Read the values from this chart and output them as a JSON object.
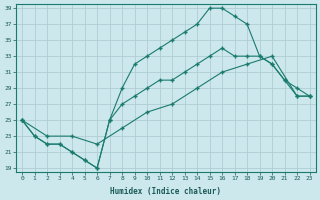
{
  "xlabel": "Humidex (Indice chaleur)",
  "bg_color": "#cce8ec",
  "grid_color": "#b0cdd4",
  "line_color": "#1a7a6e",
  "xlim": [
    -0.5,
    23.5
  ],
  "ylim": [
    18.5,
    39.5
  ],
  "xticks": [
    0,
    1,
    2,
    3,
    4,
    5,
    6,
    7,
    8,
    9,
    10,
    11,
    12,
    13,
    14,
    15,
    16,
    17,
    18,
    19,
    20,
    21,
    22,
    23
  ],
  "yticks": [
    19,
    21,
    23,
    25,
    27,
    29,
    31,
    33,
    35,
    37,
    39
  ],
  "line1_x": [
    0,
    1,
    2,
    3,
    4,
    5,
    6,
    7,
    8,
    9,
    10,
    11,
    12,
    13,
    14,
    15,
    16,
    17,
    18,
    19,
    20,
    21,
    22,
    23
  ],
  "line1_y": [
    25,
    23,
    22,
    22,
    21,
    20,
    19,
    25,
    29,
    32,
    33,
    34,
    35,
    36,
    37,
    39,
    39,
    38,
    37,
    33,
    32,
    30,
    28,
    28
  ],
  "line2_x": [
    0,
    1,
    2,
    3,
    4,
    5,
    6,
    7,
    8,
    9,
    10,
    11,
    12,
    13,
    14,
    15,
    16,
    17,
    18,
    19,
    20,
    21,
    22,
    23
  ],
  "line2_y": [
    25,
    23,
    22,
    22,
    21,
    20,
    19,
    25,
    27,
    28,
    29,
    30,
    30,
    31,
    32,
    33,
    34,
    33,
    33,
    33,
    32,
    30,
    29,
    28
  ],
  "line3_x": [
    0,
    2,
    4,
    6,
    8,
    10,
    12,
    14,
    16,
    18,
    20,
    22,
    23
  ],
  "line3_y": [
    25,
    23,
    23,
    22,
    24,
    26,
    27,
    29,
    31,
    32,
    33,
    28,
    28
  ]
}
